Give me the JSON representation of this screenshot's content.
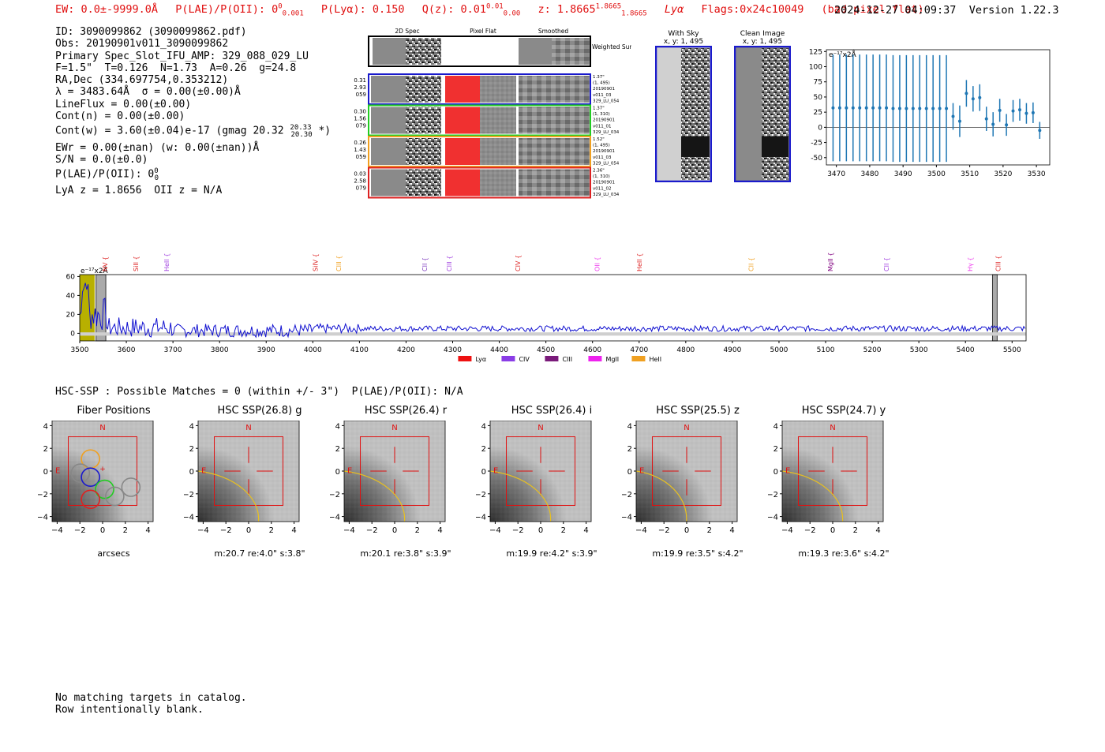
{
  "header": {
    "ew": "EW: 0.0±-9999.0Å",
    "plae_label": "P(LAE)/P(OII): 0",
    "plae_sup": "0",
    "plae_sub": "0.001",
    "plya": "P(Lyα): 0.150",
    "qz_label": "Q(z): 0.01",
    "qz_sup": "0.01",
    "qz_sub": "0.00",
    "z_label": "z: 1.8665",
    "z_sup": "1.8665",
    "z_sub": "1.8665",
    "line": "Lyα",
    "flags": "Flags:0x24c10049",
    "flag_note": "(bad pixel flat)",
    "timestamp": "2024-12-27 04:09:37",
    "version": "Version 1.22.3"
  },
  "info": {
    "id": "ID: 3090099862 (3090099862.pdf)",
    "obs": "Obs: 20190901v011_3090099862",
    "slot": "Primary Spec_Slot_IFU_AMP: 329_088_029_LU",
    "params": "F=1.5\"  T=0.126  N=1.73  A=0.26  g=24.8",
    "radec": "RA,Dec (334.697754,0.353212)",
    "lambda": "λ = 3483.64Å  σ = 0.00(±0.00)Å",
    "lineflux": "LineFlux = 0.00(±0.00)",
    "contn": "Cont(n) = 0.00(±0.00)",
    "contw": "Cont(w) = 3.60(±0.04)e-17 (gmag 20.32",
    "contw_sup": "20.33",
    "contw_sub": "20.30",
    "contw_end": "*)",
    "ewr": "EWr = 0.00(±nan) (w: 0.00(±nan))Å",
    "sn": "S/N = 0.0(±0.0)",
    "plae": "P(LAE)/P(OII): 0",
    "plae_sup": "0",
    "plae_sub": "0",
    "lyaz": "LyA z = 1.8656  OII z = N/A"
  },
  "fiber_panel": {
    "col_labels": [
      "2D Spec",
      "Pixel Flat",
      "Smoothed"
    ],
    "weighted_sum": "Weighted Sum",
    "rows": [
      {
        "color": "#1a1acc",
        "left": [
          "0.31",
          "2.93",
          "059"
        ],
        "right": [
          "1.37\"",
          "(1, 495)",
          "20190901",
          "v011_03",
          "329_LU_054"
        ]
      },
      {
        "color": "#22cc22",
        "left": [
          "0.30",
          "1.56",
          "079"
        ],
        "right": [
          "1.37\"",
          "(1, 310)",
          "20190901",
          "v011_01",
          "329_LU_034"
        ]
      },
      {
        "color": "#f0a020",
        "left": [
          "0.26",
          "1.43",
          "059"
        ],
        "right": [
          "1.52\"",
          "(1, 495)",
          "20190901",
          "v011_03",
          "329_LU_054"
        ]
      },
      {
        "color": "#dd2222",
        "left": [
          "0.03",
          "2.58",
          "079"
        ],
        "right": [
          "2.36\"",
          "(1, 310)",
          "20190901",
          "v011_02",
          "329_LU_034"
        ]
      }
    ]
  },
  "sky_panels": [
    {
      "title": "With Sky",
      "sub": "x, y: 1, 495"
    },
    {
      "title": "Clean Image",
      "sub": "x, y: 1, 495"
    }
  ],
  "small_plot": {
    "type": "scatter",
    "unit": "e⁻¹⁷x2Å",
    "xlim": [
      3467,
      3534
    ],
    "ylim": [
      -62,
      128
    ],
    "yticks": [
      125,
      100,
      75,
      50,
      25,
      0,
      -25,
      -50
    ],
    "xticks": [
      3470,
      3480,
      3490,
      3500,
      3510,
      3520,
      3530
    ],
    "x": [
      3469,
      3471,
      3473,
      3475,
      3477,
      3479,
      3481,
      3483,
      3485,
      3487,
      3489,
      3491,
      3493,
      3495,
      3497,
      3499,
      3501,
      3503,
      3505,
      3507,
      3509,
      3511,
      3513,
      3515,
      3517,
      3519,
      3521,
      3523,
      3525,
      3527,
      3529,
      3531
    ],
    "y": [
      32,
      32,
      32,
      32,
      32,
      32,
      32,
      32,
      32,
      31,
      31,
      31,
      31,
      31,
      31,
      31,
      31,
      31,
      18,
      10,
      56,
      47,
      49,
      14,
      5,
      28,
      4,
      27,
      29,
      23,
      24,
      -5
    ],
    "err": [
      88,
      88,
      88,
      88,
      88,
      88,
      88,
      88,
      88,
      88,
      88,
      88,
      88,
      88,
      88,
      88,
      88,
      88,
      22,
      26,
      22,
      21,
      22,
      20,
      20,
      19,
      18,
      18,
      18,
      17,
      17,
      14
    ]
  },
  "spectrum": {
    "type": "line",
    "unit": "e⁻¹⁷x2Å",
    "xlim": [
      3500,
      5530
    ],
    "ylim": [
      -8,
      62
    ],
    "xticks": [
      3500,
      3600,
      3700,
      3800,
      3900,
      4000,
      4100,
      4200,
      4300,
      4400,
      4500,
      4600,
      4700,
      4800,
      4900,
      5000,
      5100,
      5200,
      5300,
      5400,
      5500
    ],
    "yticks": [
      60,
      40,
      20,
      0
    ],
    "line_labels": [
      {
        "name": "NV",
        "x": 3554,
        "color": "#dd2222"
      },
      {
        "name": "SiII",
        "x": 3620,
        "color": "#dd2222"
      },
      {
        "name": "HeII",
        "x": 3686,
        "color": "#a040e0"
      },
      {
        "name": "SiIV",
        "x": 4005,
        "color": "#dd2222"
      },
      {
        "name": "CIII",
        "x": 4055,
        "color": "#f0a020"
      },
      {
        "name": "CII",
        "x": 4240,
        "color": "#8040c0"
      },
      {
        "name": "CIII",
        "x": 4292,
        "color": "#a040e0"
      },
      {
        "name": "CIV",
        "x": 4440,
        "color": "#dd2222"
      },
      {
        "name": "OII",
        "x": 4610,
        "color": "#ee40ee"
      },
      {
        "name": "HeII",
        "x": 4700,
        "color": "#dd2222"
      },
      {
        "name": "CII",
        "x": 4940,
        "color": "#f0a020"
      },
      {
        "name": "MgII",
        "x": 5110,
        "color": "#800080"
      },
      {
        "name": "CII",
        "x": 5230,
        "color": "#a040e0"
      },
      {
        "name": "Hγ",
        "x": 5410,
        "color": "#ee40ee"
      },
      {
        "name": "CIII",
        "x": 5470,
        "color": "#dd2222"
      }
    ],
    "legend": [
      {
        "name": "Lyα",
        "color": "#ee1111"
      },
      {
        "name": "CIV",
        "color": "#8a3de6"
      },
      {
        "name": "CIII",
        "color": "#7a1a7a"
      },
      {
        "name": "MgII",
        "color": "#ee22ee"
      },
      {
        "name": "HeII",
        "color": "#f0a020"
      }
    ]
  },
  "hsc_line": "HSC-SSP : Possible Matches = 0 (within +/- 3\")  P(LAE)/P(OII): N/A",
  "cutouts": [
    {
      "title": "Fiber Positions",
      "caption": "arcsecs"
    },
    {
      "title": "HSC SSP(26.8) g",
      "caption": "m:20.7  re:4.0\"  s:3.8\""
    },
    {
      "title": "HSC SSP(26.4) r",
      "caption": "m:20.1  re:3.8\"  s:3.9\""
    },
    {
      "title": "HSC SSP(26.4) i",
      "caption": "m:19.9  re:4.2\"  s:3.9\""
    },
    {
      "title": "HSC SSP(25.5) z",
      "caption": "m:19.9  re:3.5\"  s:4.2\""
    },
    {
      "title": "HSC SSP(24.7) y",
      "caption": "m:19.3  re:3.6\"  s:4.2\""
    }
  ],
  "cutout_axes": {
    "yticks": [
      "4",
      "2",
      "0",
      "−2",
      "−4"
    ],
    "xticks": [
      "−4",
      "−2",
      "0",
      "2",
      "4"
    ],
    "north": "N",
    "east": "E"
  },
  "footer": {
    "line1": "No matching targets in catalog.",
    "line2": "Row intentionally blank."
  }
}
